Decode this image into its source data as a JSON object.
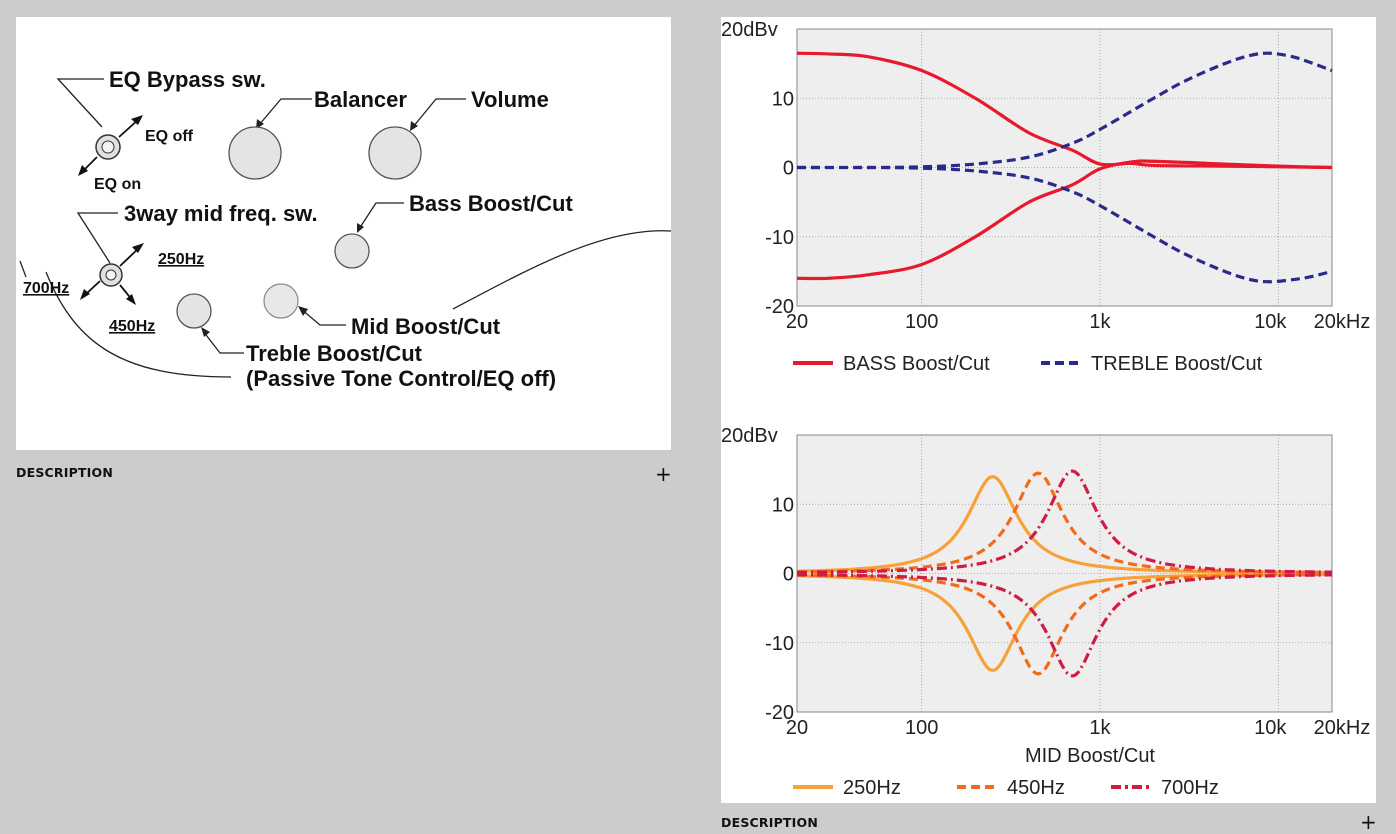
{
  "left_panel": {
    "diagram": {
      "eq_bypass": "EQ Bypass sw.",
      "eq_off": "EQ off",
      "eq_on": "EQ on",
      "balancer": "Balancer",
      "volume": "Volume",
      "mid_freq_sw": "3way mid freq. sw.",
      "bass": "Bass Boost/Cut",
      "hz250": "250Hz",
      "hz700": "700Hz",
      "hz450": "450Hz",
      "mid": "Mid Boost/Cut",
      "treble": "Treble Boost/Cut",
      "passive": "(Passive Tone Control/EQ off)"
    },
    "description_label": "DESCRIPTION",
    "expand_symbol": "+"
  },
  "right_panel": {
    "description_label": "DESCRIPTION",
    "expand_symbol": "+"
  },
  "colors": {
    "bass": "#e8192c",
    "treble": "#2a2a8c",
    "hz250": "#f7a13a",
    "hz450": "#f26b1d",
    "hz700": "#d01c44",
    "plot_bg": "#eeeeee"
  },
  "chart_data": [
    {
      "type": "line",
      "x_scale": "log",
      "xlim": [
        20,
        20000
      ],
      "ylim": [
        -20,
        20
      ],
      "ylabel": "20dBv",
      "y_ticks": [
        "20dBv",
        "10",
        "0",
        "-10",
        "-20"
      ],
      "x_ticks": [
        "20",
        "100",
        "1k",
        "10k",
        "20kHz"
      ],
      "xlabel": "",
      "grid": true,
      "legend": "bottom",
      "series": [
        {
          "name": "BASS Boost/Cut",
          "style": "solid",
          "color": "#e8192c",
          "x": [
            20,
            30,
            50,
            100,
            200,
            400,
            700,
            1000,
            1500,
            2000,
            5000,
            10000,
            20000
          ],
          "y": [
            16.5,
            16.4,
            16,
            14,
            10,
            5,
            2.5,
            0.5,
            0.6,
            0.3,
            0.2,
            0.1,
            0
          ]
        },
        {
          "name": "",
          "style": "solid",
          "color": "#e8192c",
          "x": [
            20,
            30,
            50,
            100,
            200,
            400,
            700,
            1000,
            1500,
            2000,
            5000,
            10000,
            20000
          ],
          "y": [
            -16,
            -16,
            -15.5,
            -14,
            -10,
            -5,
            -2.5,
            -0.2,
            0.8,
            0.9,
            0.5,
            0.2,
            0
          ]
        },
        {
          "name": "TREBLE Boost/Cut",
          "style": "dashed",
          "color": "#2a2a8c",
          "x": [
            20,
            50,
            100,
            200,
            400,
            700,
            1000,
            2000,
            3000,
            5000,
            7000,
            9000,
            12000,
            15000,
            20000
          ],
          "y": [
            0,
            0,
            0.1,
            0.5,
            1.5,
            3.5,
            5.5,
            10,
            12.5,
            15,
            16.2,
            16.5,
            16,
            15.2,
            14
          ]
        },
        {
          "name": "",
          "style": "dashed",
          "color": "#2a2a8c",
          "x": [
            20,
            50,
            100,
            200,
            400,
            700,
            1000,
            2000,
            3000,
            5000,
            7000,
            9000,
            12000,
            15000,
            20000
          ],
          "y": [
            0,
            0,
            -0.1,
            -0.5,
            -1.5,
            -3.5,
            -5.5,
            -10,
            -12.5,
            -15,
            -16.2,
            -16.5,
            -16.2,
            -15.8,
            -15
          ]
        }
      ]
    },
    {
      "type": "line",
      "x_scale": "log",
      "xlim": [
        20,
        20000
      ],
      "ylim": [
        -20,
        20
      ],
      "ylabel": "20dBv",
      "y_ticks": [
        "20dBv",
        "10",
        "0",
        "-10",
        "-20"
      ],
      "x_ticks": [
        "20",
        "100",
        "1k",
        "10k",
        "20kHz"
      ],
      "xlabel": "MID Boost/Cut",
      "grid": true,
      "legend": "bottom",
      "series": [
        {
          "name": "250Hz",
          "style": "solid",
          "color": "#f7a13a",
          "center": 250,
          "gain": 14
        },
        {
          "name": "450Hz",
          "style": "dashed",
          "color": "#f26b1d",
          "center": 450,
          "gain": 14.5
        },
        {
          "name": "700Hz",
          "style": "dashdot",
          "color": "#d01c44",
          "center": 700,
          "gain": 14.8
        }
      ]
    }
  ]
}
